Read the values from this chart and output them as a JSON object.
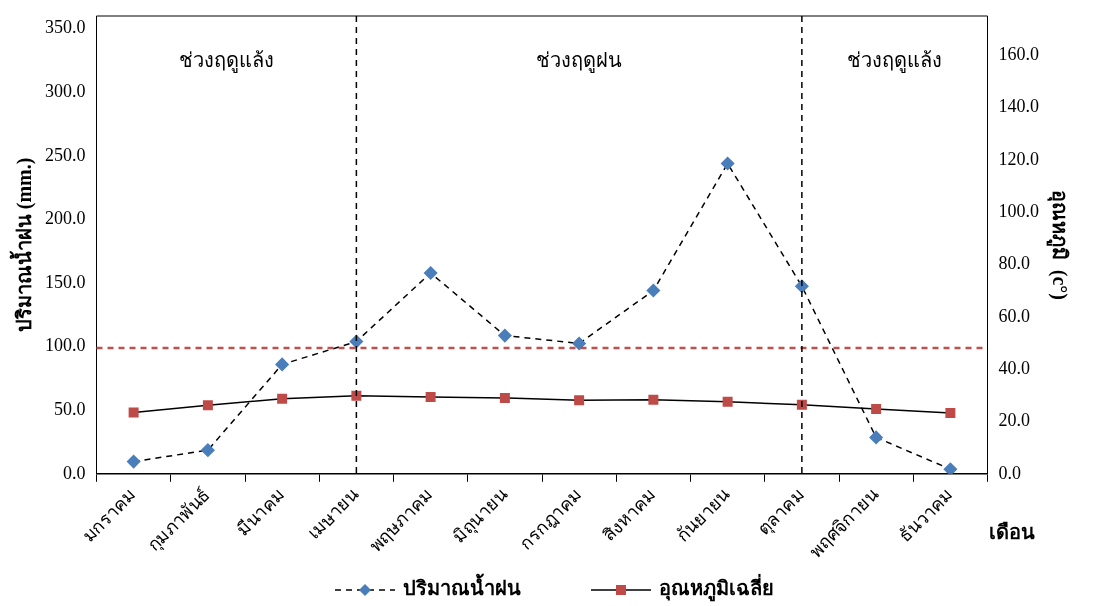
{
  "chart_data": {
    "type": "line",
    "categories": [
      "มกราคม",
      "กุมภาพันธ์",
      "มีนาคม",
      "เมษายน",
      "พฤษภาคม",
      "มิถุนายน",
      "กรกฎาคม",
      "สิงหาคม",
      "กันยายน",
      "ตุลาคม",
      "พฤศจิกายน",
      "ธันวาคม"
    ],
    "series": [
      {
        "name": "ปริมาณน้ำฝน",
        "color": "#4a7ebb",
        "marker": "diamond",
        "line_style": "dashed",
        "values": [
          9.6,
          18.6,
          86,
          104,
          157.9,
          108.7,
          102.5,
          144.1,
          244,
          147.5,
          28.6,
          3.6
        ]
      },
      {
        "name": "อุณหภูมิเฉลี่ย",
        "color": "#be4b48",
        "marker": "square",
        "line_style": "solid",
        "axis": "y2",
        "values": [
          23.4,
          26.2,
          28.7,
          29.8,
          29.4,
          29.0,
          28.1,
          28.3,
          27.5,
          26.4,
          24.8,
          23.2
        ]
      }
    ],
    "xlabel": "เดือน",
    "ylabel": "ปริมาณน้ำฝน (mm.)",
    "y2label": "อุณหภูมิ  (c°)",
    "ylim": [
      0,
      360
    ],
    "yticks": [
      {
        "value": 0,
        "label": "0.0"
      },
      {
        "value": 50,
        "label": "50.0"
      },
      {
        "value": 100,
        "label": "100.0"
      },
      {
        "value": 150,
        "label": "150.0"
      },
      {
        "value": 200,
        "label": "200.0"
      },
      {
        "value": 250,
        "label": "250.0"
      },
      {
        "value": 300,
        "label": "300.0"
      },
      {
        "value": 350,
        "label": "350.0"
      }
    ],
    "y2lim": [
      0,
      175
    ],
    "y2ticks": [
      {
        "value": 0,
        "label": "0.0"
      },
      {
        "value": 20,
        "label": "20.0"
      },
      {
        "value": 40,
        "label": "40.0"
      },
      {
        "value": 60,
        "label": "60.0"
      },
      {
        "value": 80,
        "label": "80.0"
      },
      {
        "value": 100,
        "label": "100.0"
      },
      {
        "value": 120,
        "label": "120.0"
      },
      {
        "value": 140,
        "label": "140.0"
      },
      {
        "value": 160,
        "label": "160.0"
      }
    ],
    "ref_lines": [
      {
        "axis": "y",
        "value": 99,
        "color": "#c0504d",
        "line_style": "dashed"
      },
      {
        "axis": "x",
        "value": "เมษายน",
        "color": "#000000",
        "line_style": "dashed"
      },
      {
        "axis": "x",
        "value": "ตุลาคม",
        "color": "#000000",
        "line_style": "dashed"
      }
    ],
    "annotations": [
      "ช่วงฤดูแล้ง",
      "ช่วงฤดูฝน",
      "ช่วงฤดูแล้ง"
    ],
    "grid": false,
    "legend": "bottom"
  }
}
